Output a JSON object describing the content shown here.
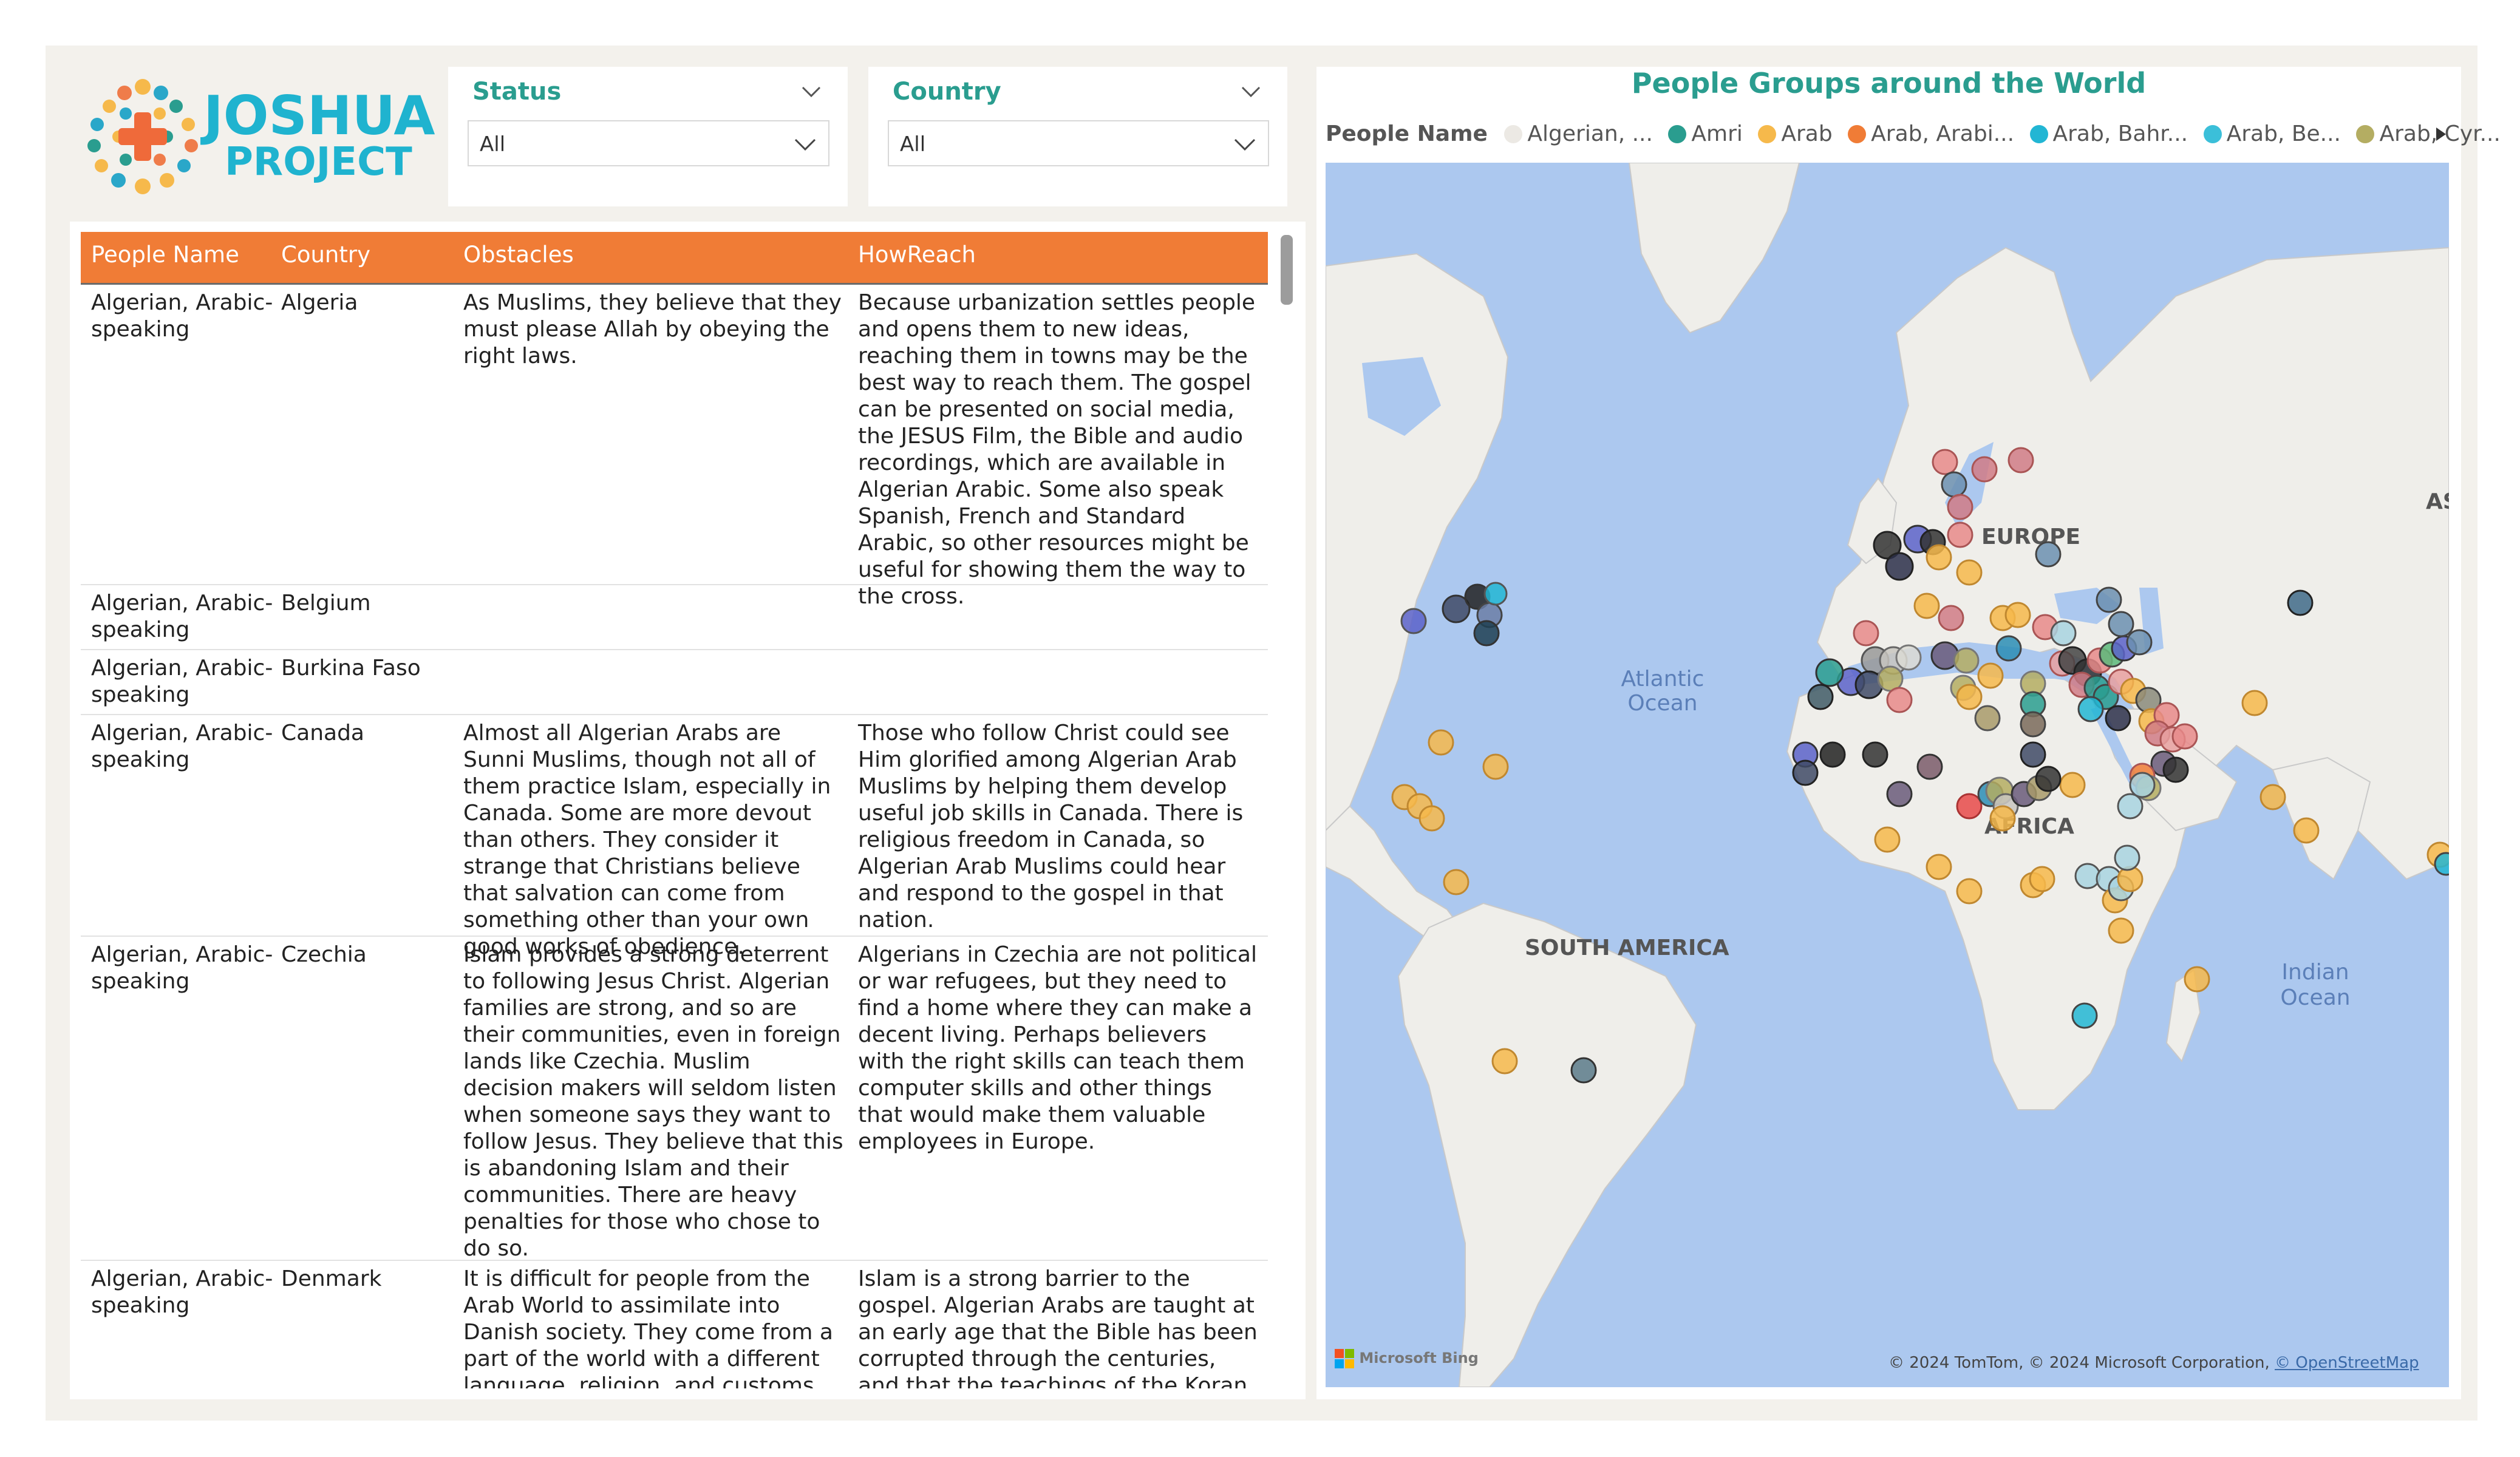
{
  "logo": {
    "line1": "JOSHUA",
    "line2": "PROJECT"
  },
  "filters": {
    "status": {
      "label": "Status",
      "value": "All"
    },
    "country": {
      "label": "Country",
      "value": "All"
    }
  },
  "table": {
    "columns": [
      "People Name",
      "Country",
      "Obstacles",
      "HowReach"
    ],
    "rows": [
      {
        "people": "Algerian, Arabic-speaking",
        "country": "Algeria",
        "obstacles": "As Muslims, they believe that they must please Allah by obeying the right laws.",
        "howreach": "Because urbanization settles people and opens them to new ideas, reaching them in towns may be the best way to reach them. The gospel can be presented on social media, the JESUS Film, the Bible and audio recordings, which are available in Algerian Arabic. Some also speak Spanish, French and Standard Arabic, so other resources might be useful for showing them the way to the cross."
      },
      {
        "people": "Algerian, Arabic-speaking",
        "country": "Belgium",
        "obstacles": "",
        "howreach": ""
      },
      {
        "people": "Algerian, Arabic-speaking",
        "country": "Burkina Faso",
        "obstacles": "",
        "howreach": ""
      },
      {
        "people": "Algerian, Arabic-speaking",
        "country": "Canada",
        "obstacles": "Almost all Algerian Arabs are Sunni Muslims, though not all of them practice Islam, especially in Canada. Some are more devout than others. They consider it strange that Christians believe that salvation can come from something other than your own good works of obedience.",
        "howreach": "Those who follow Christ could see Him glorified among Algerian Arab Muslims by helping them develop useful job skills in Canada. There is religious freedom in Canada, so Algerian Arab Muslims could hear and respond to the gospel in that nation."
      },
      {
        "people": "Algerian, Arabic-speaking",
        "country": "Czechia",
        "obstacles": "Islam provides a strong deterrent to following Jesus Christ. Algerian families are strong, and so are their communities, even in foreign lands like Czechia. Muslim decision makers will seldom listen when someone says they want to follow Jesus. They believe that this is abandoning Islam and their communities. There are heavy penalties for those who chose to do so.",
        "howreach": "Algerians in Czechia are not political or war refugees, but they need to find a home where they can make a decent living. Perhaps believers with the right skills can teach them computer skills and other things that would make them valuable employees in Europe."
      },
      {
        "people": "Algerian, Arabic-speaking",
        "country": "Denmark",
        "obstacles": "It is difficult for people from the Arab World to assimilate into Danish society. They come from a part of the world with a different language, religion, and customs. They can use",
        "howreach": "Islam is a strong barrier to the gospel. Algerian Arabs are taught at an early age that the Bible has been corrupted through the centuries, and that the teachings of the Koran are the perfect"
      }
    ]
  },
  "map": {
    "title": "People Groups around the World",
    "legend_title": "People Name",
    "legend": [
      {
        "name": "Algerian, ...",
        "color": "#ece9e4"
      },
      {
        "name": "Amri",
        "color": "#2a9d8f"
      },
      {
        "name": "Arab",
        "color": "#f6b94b"
      },
      {
        "name": "Arab, Arabi...",
        "color": "#f07c36"
      },
      {
        "name": "Arab, Bahr...",
        "color": "#22b6d4"
      },
      {
        "name": "Arab, Be...",
        "color": "#3bbfd9"
      },
      {
        "name": "Arab, Cyr...",
        "color": "#b4ad62"
      }
    ],
    "labels": {
      "europe": "EUROPE",
      "africa": "AFRICA",
      "south_america": "SOUTH AMERICA",
      "atlantic1": "Atlantic",
      "atlantic2": "Ocean",
      "indian1": "Indian",
      "indian2": "Ocean",
      "asia": "AS"
    },
    "bing": "Microsoft Bing",
    "copyright": "© 2024 TomTom, © 2024 Microsoft Corporation, ",
    "osm_link": "© OpenStreetMap"
  }
}
